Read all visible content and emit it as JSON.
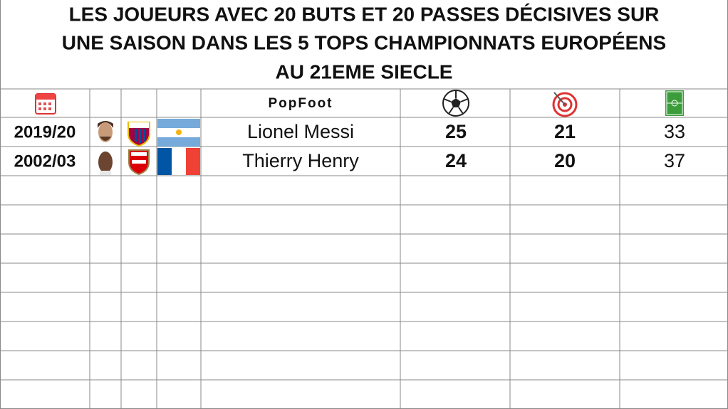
{
  "title": [
    "LES JOUEURS AVEC 20 BUTS ET 20 PASSES DÉCISIVES SUR",
    "UNE SAISON DANS LES 5 TOPS CHAMPIONNATS EUROPÉENS",
    "AU 21EME SIECLE"
  ],
  "header": {
    "logo": "PopFoot"
  },
  "table": {
    "rows": [
      [
        "2019/20",
        "Lionel Messi",
        25,
        21,
        33
      ],
      [
        "2002/03",
        "Thierry Henry",
        24,
        20,
        37
      ]
    ]
  }
}
